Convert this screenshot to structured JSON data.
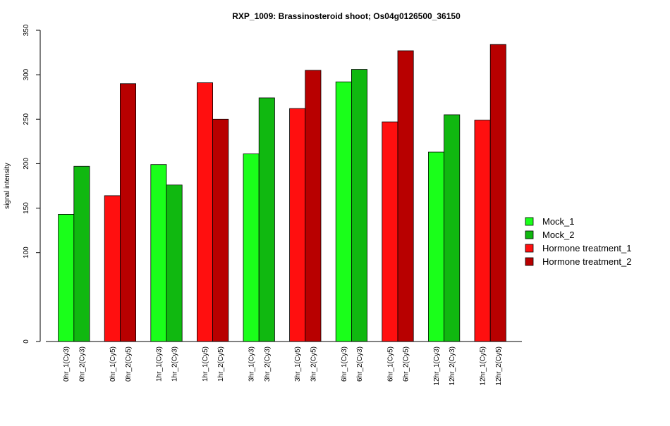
{
  "chart_data": {
    "type": "bar",
    "title": "RXP_1009: Brassinosteroid shoot; Os04g0126500_36150",
    "xlabel": "",
    "ylabel": "signal intensity",
    "ylim": [
      0,
      350
    ],
    "yticks": [
      0,
      100,
      150,
      200,
      250,
      300,
      350
    ],
    "grid": false,
    "legend_position": "right",
    "series_legend": [
      {
        "name": "Mock_1",
        "color": "#1aff1a"
      },
      {
        "name": "Mock_2",
        "color": "#10b810"
      },
      {
        "name": "Hormone treatment_1",
        "color": "#ff0f0f"
      },
      {
        "name": "Hormone treatment_2",
        "color": "#b80000"
      }
    ],
    "bars": [
      {
        "label": "0hr_1(Cy3)",
        "value": 143,
        "series": 0
      },
      {
        "label": "0hr_2(Cy3)",
        "value": 197,
        "series": 1
      },
      {
        "label": "0hr_1(Cy5)",
        "value": 164,
        "series": 2
      },
      {
        "label": "0hr_2(Cy5)",
        "value": 290,
        "series": 3
      },
      {
        "label": "1hr_1(Cy3)",
        "value": 199,
        "series": 0
      },
      {
        "label": "1hr_2(Cy3)",
        "value": 176,
        "series": 1
      },
      {
        "label": "1hr_1(Cy5)",
        "value": 291,
        "series": 2
      },
      {
        "label": "1hr_2(Cy5)",
        "value": 250,
        "series": 3
      },
      {
        "label": "3hr_1(Cy3)",
        "value": 211,
        "series": 0
      },
      {
        "label": "3hr_2(Cy3)",
        "value": 274,
        "series": 1
      },
      {
        "label": "3hr_1(Cy5)",
        "value": 262,
        "series": 2
      },
      {
        "label": "3hr_2(Cy5)",
        "value": 305,
        "series": 3
      },
      {
        "label": "6hr_1(Cy3)",
        "value": 292,
        "series": 0
      },
      {
        "label": "6hr_2(Cy3)",
        "value": 306,
        "series": 1
      },
      {
        "label": "6hr_1(Cy5)",
        "value": 247,
        "series": 2
      },
      {
        "label": "6hr_2(Cy5)",
        "value": 327,
        "series": 3
      },
      {
        "label": "12hr_1(Cy3)",
        "value": 213,
        "series": 0
      },
      {
        "label": "12hr_2(Cy3)",
        "value": 255,
        "series": 1
      },
      {
        "label": "12hr_1(Cy5)",
        "value": 249,
        "series": 2
      },
      {
        "label": "12hr_2(Cy5)",
        "value": 334,
        "series": 3
      }
    ]
  }
}
